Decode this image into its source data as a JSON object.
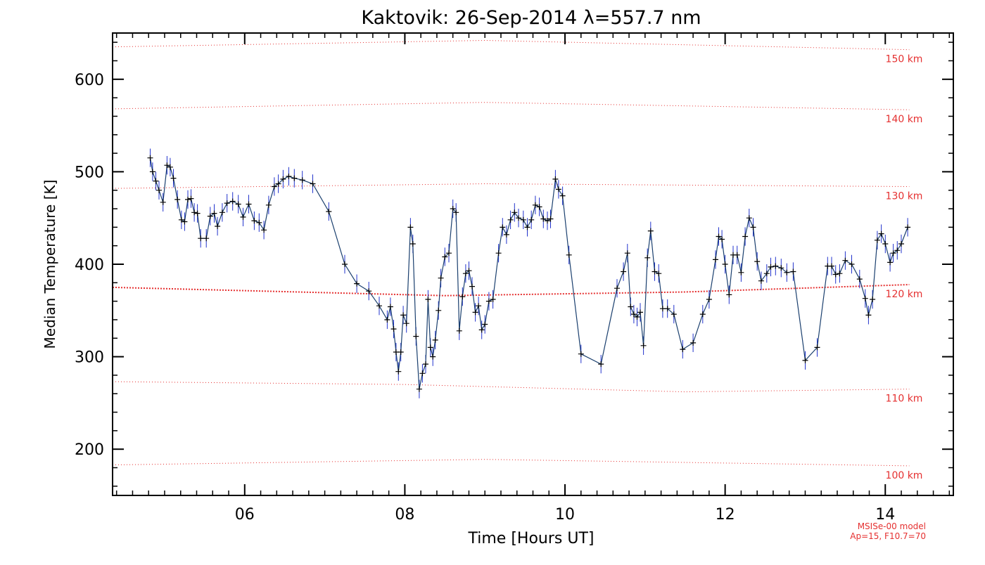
{
  "chart_data": {
    "type": "line",
    "title": "Kaktovik: 26-Sep-2014 λ=557.7 nm",
    "xlabel": "Time [Hours UT]",
    "ylabel": "Median Temperature [K]",
    "xlim": [
      4.35,
      14.85
    ],
    "ylim": [
      150,
      650
    ],
    "xticks": [
      6,
      8,
      10,
      12,
      14
    ],
    "xtick_labels": [
      "06",
      "08",
      "10",
      "12",
      "14"
    ],
    "yticks": [
      200,
      300,
      400,
      500,
      600
    ],
    "ytick_labels": [
      "200",
      "300",
      "400",
      "500",
      "600"
    ],
    "grid": false,
    "colors": {
      "series": "#1a3f6e",
      "error_bars": "#2233cc",
      "markers": "#000000",
      "model": "#e53030"
    },
    "series": [
      {
        "values": [
          [
            4.82,
            515
          ],
          [
            4.85,
            500
          ],
          [
            4.89,
            490
          ],
          [
            4.93,
            480
          ],
          [
            4.98,
            467
          ],
          [
            5.03,
            507
          ],
          [
            5.07,
            505
          ],
          [
            5.11,
            493
          ],
          [
            5.16,
            470
          ],
          [
            5.21,
            448
          ],
          [
            5.25,
            446
          ],
          [
            5.29,
            470
          ],
          [
            5.33,
            471
          ],
          [
            5.37,
            456
          ],
          [
            5.41,
            455
          ],
          [
            5.45,
            428
          ],
          [
            5.52,
            428
          ],
          [
            5.57,
            452
          ],
          [
            5.62,
            455
          ],
          [
            5.66,
            441
          ],
          [
            5.72,
            456
          ],
          [
            5.78,
            466
          ],
          [
            5.85,
            468
          ],
          [
            5.92,
            465
          ],
          [
            5.98,
            451
          ],
          [
            6.05,
            465
          ],
          [
            6.12,
            447
          ],
          [
            6.18,
            445
          ],
          [
            6.24,
            437
          ],
          [
            6.3,
            464
          ],
          [
            6.37,
            484
          ],
          [
            6.42,
            487
          ],
          [
            6.48,
            492
          ],
          [
            6.55,
            495
          ],
          [
            6.62,
            493
          ],
          [
            6.72,
            491
          ],
          [
            6.85,
            487
          ],
          [
            7.05,
            457
          ],
          [
            7.25,
            400
          ],
          [
            7.4,
            379
          ],
          [
            7.55,
            371
          ],
          [
            7.68,
            355
          ],
          [
            7.78,
            340
          ],
          [
            7.82,
            354
          ],
          [
            7.86,
            330
          ],
          [
            7.89,
            305
          ],
          [
            7.92,
            284
          ],
          [
            7.95,
            305
          ],
          [
            7.98,
            345
          ],
          [
            8.02,
            336
          ],
          [
            8.07,
            440
          ],
          [
            8.1,
            422
          ],
          [
            8.14,
            322
          ],
          [
            8.18,
            265
          ],
          [
            8.22,
            282
          ],
          [
            8.26,
            292
          ],
          [
            8.29,
            362
          ],
          [
            8.32,
            310
          ],
          [
            8.35,
            300
          ],
          [
            8.38,
            318
          ],
          [
            8.42,
            350
          ],
          [
            8.45,
            385
          ],
          [
            8.5,
            408
          ],
          [
            8.55,
            412
          ],
          [
            8.6,
            460
          ],
          [
            8.64,
            456
          ],
          [
            8.68,
            328
          ],
          [
            8.72,
            365
          ],
          [
            8.76,
            390
          ],
          [
            8.8,
            393
          ],
          [
            8.84,
            376
          ],
          [
            8.88,
            348
          ],
          [
            8.92,
            355
          ],
          [
            8.96,
            329
          ],
          [
            9.0,
            335
          ],
          [
            9.05,
            360
          ],
          [
            9.1,
            362
          ],
          [
            9.17,
            412
          ],
          [
            9.22,
            440
          ],
          [
            9.27,
            432
          ],
          [
            9.32,
            448
          ],
          [
            9.37,
            456
          ],
          [
            9.42,
            450
          ],
          [
            9.48,
            448
          ],
          [
            9.53,
            440
          ],
          [
            9.58,
            448
          ],
          [
            9.63,
            464
          ],
          [
            9.68,
            462
          ],
          [
            9.73,
            449
          ],
          [
            9.78,
            447
          ],
          [
            9.82,
            449
          ],
          [
            9.88,
            492
          ],
          [
            9.92,
            481
          ],
          [
            9.97,
            474
          ],
          [
            10.05,
            410
          ],
          [
            10.2,
            303
          ],
          [
            10.45,
            292
          ],
          [
            10.65,
            374
          ],
          [
            10.73,
            392
          ],
          [
            10.78,
            412
          ],
          [
            10.82,
            354
          ],
          [
            10.86,
            346
          ],
          [
            10.9,
            343
          ],
          [
            10.94,
            348
          ],
          [
            10.98,
            312
          ],
          [
            11.03,
            407
          ],
          [
            11.07,
            436
          ],
          [
            11.12,
            392
          ],
          [
            11.17,
            390
          ],
          [
            11.22,
            352
          ],
          [
            11.28,
            352
          ],
          [
            11.36,
            346
          ],
          [
            11.47,
            308
          ],
          [
            11.6,
            315
          ],
          [
            11.72,
            346
          ],
          [
            11.8,
            362
          ],
          [
            11.88,
            405
          ],
          [
            11.92,
            430
          ],
          [
            11.96,
            427
          ],
          [
            12.0,
            400
          ],
          [
            12.05,
            367
          ],
          [
            12.1,
            410
          ],
          [
            12.15,
            410
          ],
          [
            12.2,
            391
          ],
          [
            12.25,
            430
          ],
          [
            12.3,
            450
          ],
          [
            12.35,
            440
          ],
          [
            12.4,
            403
          ],
          [
            12.45,
            382
          ],
          [
            12.52,
            390
          ],
          [
            12.57,
            397
          ],
          [
            12.63,
            398
          ],
          [
            12.7,
            396
          ],
          [
            12.77,
            391
          ],
          [
            12.85,
            392
          ],
          [
            13.0,
            296
          ],
          [
            13.15,
            310
          ],
          [
            13.28,
            398
          ],
          [
            13.33,
            398
          ],
          [
            13.38,
            389
          ],
          [
            13.43,
            390
          ],
          [
            13.5,
            404
          ],
          [
            13.58,
            400
          ],
          [
            13.68,
            384
          ],
          [
            13.75,
            363
          ],
          [
            13.79,
            345
          ],
          [
            13.84,
            362
          ],
          [
            13.9,
            426
          ],
          [
            13.95,
            433
          ],
          [
            14.0,
            422
          ],
          [
            14.06,
            402
          ],
          [
            14.1,
            412
          ],
          [
            14.15,
            415
          ],
          [
            14.2,
            422
          ],
          [
            14.28,
            440
          ]
        ],
        "error": 10
      }
    ],
    "model_curves": [
      {
        "label": "150 km",
        "values": [
          [
            4.35,
            635
          ],
          [
            9.0,
            642
          ],
          [
            14.3,
            632
          ]
        ]
      },
      {
        "label": "140 km",
        "values": [
          [
            4.35,
            568
          ],
          [
            9.0,
            575
          ],
          [
            14.3,
            567
          ]
        ]
      },
      {
        "label": "130 km",
        "values": [
          [
            4.35,
            482
          ],
          [
            9.0,
            487
          ],
          [
            14.3,
            484
          ]
        ]
      },
      {
        "label": "120 km",
        "values": [
          [
            4.35,
            375
          ],
          [
            8.5,
            366
          ],
          [
            11.5,
            370
          ],
          [
            14.3,
            378
          ]
        ]
      },
      {
        "label": "110 km",
        "values": [
          [
            4.35,
            273
          ],
          [
            8.0,
            270
          ],
          [
            11.5,
            262
          ],
          [
            14.3,
            265
          ]
        ]
      },
      {
        "label": "100 km",
        "values": [
          [
            4.35,
            183
          ],
          [
            9.0,
            189
          ],
          [
            14.3,
            182
          ]
        ]
      }
    ],
    "annotations": [
      "MSISe-00 model",
      "Ap=15, F10.7=70"
    ]
  }
}
